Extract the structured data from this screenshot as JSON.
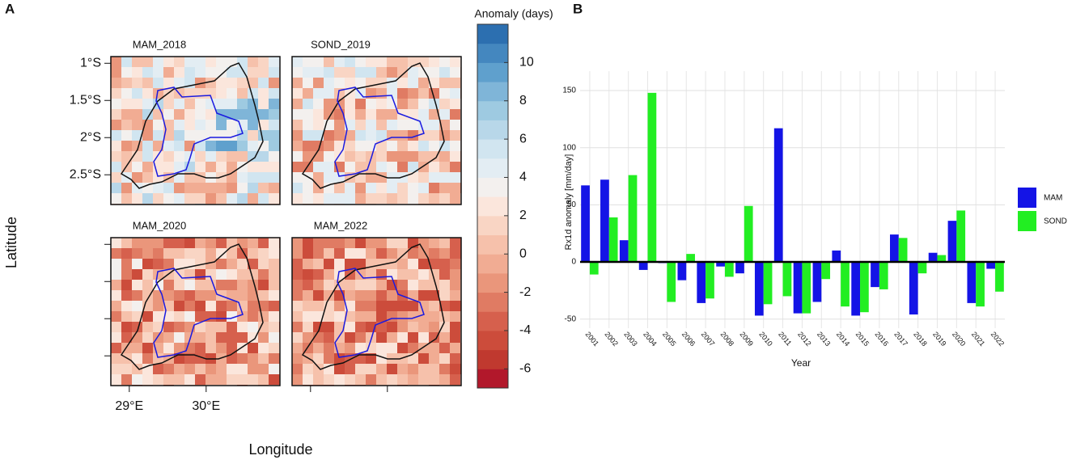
{
  "panel_labels": [
    "A",
    "B"
  ],
  "maps": {
    "panels": [
      "MAM_2018",
      "SOND_2019",
      "MAM_2020",
      "MAM_2022"
    ],
    "ylabel": "Latitude",
    "xlabel": "Longitude",
    "ylim": [
      -2.9,
      -0.91
    ],
    "xlim": [
      28.76,
      30.96
    ],
    "yticks": [
      {
        "value": -1,
        "label": "1°S"
      },
      {
        "value": -1.5,
        "label": "1.5°S"
      },
      {
        "value": -2,
        "label": "2°S"
      },
      {
        "value": -2.5,
        "label": "2.5°S"
      }
    ],
    "xticks": [
      {
        "value": 29,
        "label": "29°E"
      },
      {
        "value": 30,
        "label": "30°E"
      }
    ],
    "colorbar": {
      "title": "Anomaly (days)",
      "lim": [
        -7,
        12
      ],
      "ticks": [
        -6,
        -4,
        -2,
        0,
        2,
        4,
        6,
        8,
        10
      ],
      "colors": [
        "#b2182b",
        "#c0392f",
        "#cc4c3b",
        "#d6604d",
        "#e07b63",
        "#ea967b",
        "#f1ac93",
        "#f6c1ab",
        "#f9d5c4",
        "#fbe6dc",
        "#f3f0ee",
        "#e3edf3",
        "#d1e5f0",
        "#b8d7e9",
        "#9ecae1",
        "#7fb5d8",
        "#5fa0cd",
        "#4487bf",
        "#2c6fb0"
      ]
    }
  },
  "chart_data": {
    "type": "bar",
    "ylabel": "Rx1d anomaly [mm/day]",
    "xlabel": "Year",
    "categories": [
      "2001",
      "2002",
      "2003",
      "2004",
      "2005",
      "2006",
      "2007",
      "2008",
      "2009",
      "2010",
      "2011",
      "2012",
      "2013",
      "2014",
      "2015",
      "2016",
      "2017",
      "2018",
      "2019",
      "2020",
      "2021",
      "2022"
    ],
    "series": [
      {
        "name": "MAM",
        "color": "#1414e6",
        "values": [
          67,
          72,
          19,
          -7,
          -1,
          -16,
          -36,
          -4,
          -10,
          -47,
          117,
          -45,
          -35,
          10,
          -47,
          -22,
          24,
          -46,
          8,
          36,
          -36,
          -6
        ]
      },
      {
        "name": "SOND",
        "color": "#22ee22",
        "values": [
          -11,
          39,
          76,
          148,
          -35,
          7,
          -32,
          -13,
          49,
          -37,
          -30,
          -45,
          -15,
          -39,
          -44,
          -24,
          21,
          -10,
          6,
          45,
          -39,
          -26
        ]
      }
    ],
    "ylim": [
      -58,
      167
    ],
    "yticks": [
      -50,
      0,
      50,
      100,
      150
    ],
    "grid": true
  }
}
